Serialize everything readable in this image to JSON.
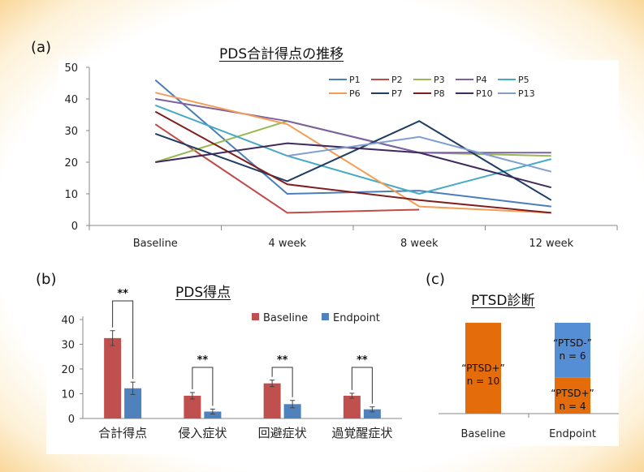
{
  "panels": {
    "a": {
      "label": "(a)",
      "title": "PDS合計得点の推移"
    },
    "b": {
      "label": "(b)",
      "title": "PDS得点"
    },
    "c": {
      "label": "(c)",
      "title": "PTSD診断"
    }
  },
  "colors": {
    "baseline_bar": "#c0504d",
    "endpoint_bar": "#4f81bd",
    "ptsd_pos": "#e46c0a",
    "ptsd_neg": "#558ed5"
  },
  "chart_data": [
    {
      "id": "a",
      "type": "line",
      "title": "PDS合計得点の推移",
      "categories": [
        "Baseline",
        "4 week",
        "8 week",
        "12 week"
      ],
      "ylim": [
        0,
        50
      ],
      "yticks": [
        0,
        10,
        20,
        30,
        40,
        50
      ],
      "legend_position": "top-right",
      "series": [
        {
          "name": "P1",
          "color": "#4a7ebb",
          "values": [
            46,
            10,
            11,
            6
          ]
        },
        {
          "name": "P2",
          "color": "#be4b48",
          "values": [
            32,
            4,
            5,
            null
          ]
        },
        {
          "name": "P3",
          "color": "#98b954",
          "values": [
            20,
            33,
            23,
            22
          ]
        },
        {
          "name": "P4",
          "color": "#7d60a0",
          "values": [
            40,
            33,
            23,
            23
          ]
        },
        {
          "name": "P5",
          "color": "#46aac5",
          "values": [
            38,
            22,
            10,
            21
          ]
        },
        {
          "name": "P6",
          "color": "#f59d56",
          "values": [
            42,
            32,
            6,
            4
          ]
        },
        {
          "name": "P7",
          "color": "#1f3d63",
          "values": [
            29,
            14,
            33,
            8
          ]
        },
        {
          "name": "P8",
          "color": "#7f1f1d",
          "values": [
            36,
            13,
            8,
            4
          ]
        },
        {
          "name": "P10",
          "color": "#3e2a5c",
          "values": [
            20,
            26,
            23,
            12
          ]
        },
        {
          "name": "P13",
          "color": "#7f9fcf",
          "values": [
            null,
            22,
            28,
            17
          ]
        }
      ]
    },
    {
      "id": "b",
      "type": "bar",
      "title": "PDS得点",
      "categories": [
        "合計得点",
        "侵入症状",
        "回避症状",
        "過覚醒症状"
      ],
      "ylim": [
        0,
        40
      ],
      "yticks": [
        0,
        10,
        20,
        30,
        40
      ],
      "legend_position": "top-right",
      "significance": [
        "**",
        "**",
        "**",
        "**"
      ],
      "series": [
        {
          "name": "Baseline",
          "values": [
            32.5,
            9.2,
            14.2,
            9.2
          ],
          "errors": [
            3.0,
            1.3,
            1.3,
            1.0
          ]
        },
        {
          "name": "Endpoint",
          "values": [
            12.2,
            2.8,
            5.8,
            3.7
          ],
          "errors": [
            2.5,
            1.0,
            1.5,
            1.0
          ]
        }
      ]
    },
    {
      "id": "c",
      "type": "bar",
      "stacked": true,
      "title": "PTSD診断",
      "categories": [
        "Baseline",
        "Endpoint"
      ],
      "series": [
        {
          "label": "“PTSD+”",
          "label_value": "n = 10",
          "values": [
            10,
            4
          ]
        },
        {
          "label": "“PTSD-”",
          "label_value": "n = 6",
          "values": [
            0,
            6
          ]
        }
      ],
      "segment_labels": {
        "baseline_pos": [
          "“PTSD+”",
          "n = 10"
        ],
        "endpoint_pos": [
          "“PTSD+”",
          "n = 4"
        ],
        "endpoint_neg": [
          "“PTSD-”",
          "n = 6"
        ]
      }
    }
  ]
}
